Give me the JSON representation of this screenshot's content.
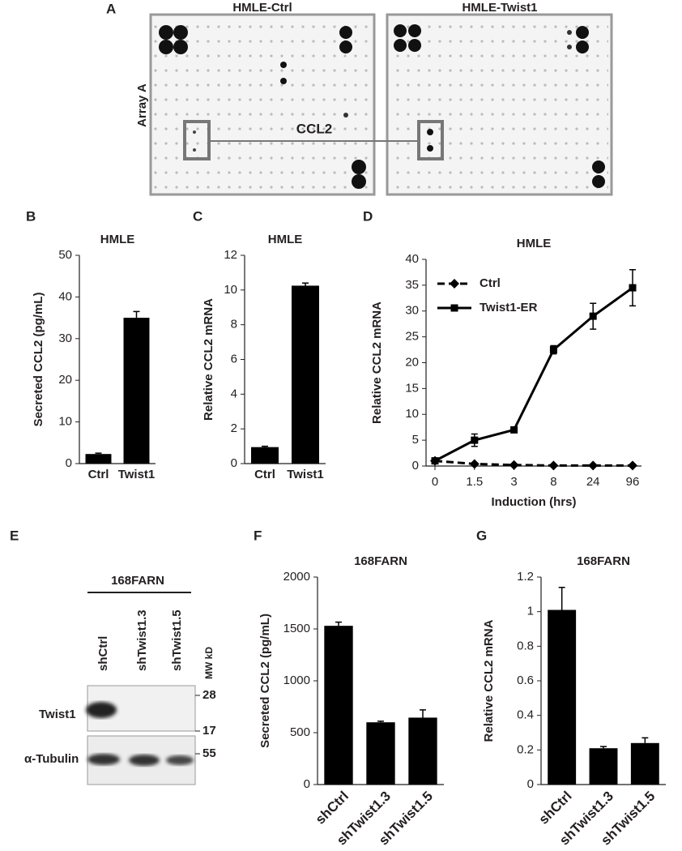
{
  "array_panel": {
    "label": "A",
    "titles": [
      "HMLE-Ctrl",
      "HMLE-Twist1"
    ],
    "row_label": "Array A",
    "highlight": "CCL2"
  },
  "blot_panel": {
    "label": "E",
    "cell_line": "168FARN",
    "lanes": [
      "shCtrl",
      "shTwist1.3",
      "shTwist1.5"
    ],
    "mw_label": "MW kD",
    "rows": [
      "Twist1",
      "α-Tubulin"
    ],
    "markers": [
      "28",
      "17",
      "55"
    ]
  },
  "chart_data": [
    {
      "type": "bar",
      "panel_label": "B",
      "title": "HMLE",
      "y_label": "Secreted CCL2 (pg/mL)",
      "categories": [
        "Ctrl",
        "Twist1"
      ],
      "values": [
        2.3,
        35
      ],
      "errors": [
        0.2,
        1.5
      ],
      "color": "#000000",
      "ylim": [
        0,
        50
      ],
      "yticks": [
        0,
        10,
        20,
        30,
        40,
        50
      ]
    },
    {
      "type": "bar",
      "panel_label": "C",
      "title": "HMLE",
      "y_label": "Relative CCL2 mRNA",
      "categories": [
        "Ctrl",
        "Twist1"
      ],
      "values": [
        0.95,
        10.25
      ],
      "errors": [
        0.05,
        0.15
      ],
      "color": "#000000",
      "ylim": [
        0,
        12
      ],
      "yticks": [
        0,
        2,
        4,
        6,
        8,
        10,
        12
      ]
    },
    {
      "type": "line",
      "panel_label": "D",
      "title": "HMLE",
      "x_label": "Induction (hrs)",
      "y_label": "Relative CCL2 mRNA",
      "categories": [
        "0",
        "1.5",
        "3",
        "8",
        "24",
        "96"
      ],
      "ylim": [
        0,
        40
      ],
      "yticks": [
        0,
        5,
        10,
        15,
        20,
        25,
        30,
        35,
        40
      ],
      "legend": "upper left",
      "series": [
        {
          "name": "Ctrl",
          "color": "#000000",
          "dashed": true,
          "marker": "diamond",
          "values": [
            1,
            0.4,
            0.2,
            0.1,
            0.1,
            0.1
          ],
          "errors": [
            0.1,
            0.05,
            0.05,
            0.05,
            0.05,
            0.05
          ]
        },
        {
          "name": "Twist1-ER",
          "color": "#000000",
          "dashed": false,
          "marker": "square",
          "values": [
            1,
            5,
            7,
            22.5,
            29,
            34.5
          ],
          "errors": [
            0.3,
            1.2,
            0.4,
            0.8,
            2.5,
            3.5
          ]
        }
      ]
    },
    {
      "type": "bar",
      "panel_label": "F",
      "title": "168FARN",
      "y_label": "Secreted CCL2 (pg/mL)",
      "categories": [
        "shCtrl",
        "shTwist1.3",
        "shTwist1.5"
      ],
      "values": [
        1530,
        600,
        645
      ],
      "errors": [
        35,
        10,
        75
      ],
      "color": "#000000",
      "ylim": [
        0,
        2000
      ],
      "yticks": [
        0,
        500,
        1000,
        1500,
        2000
      ]
    },
    {
      "type": "bar",
      "panel_label": "G",
      "title": "168FARN",
      "y_label": "Relative CCL2 mRNA",
      "categories": [
        "shCtrl",
        "shTwist1.3",
        "shTwist1.5"
      ],
      "values": [
        1.01,
        0.21,
        0.24
      ],
      "errors": [
        0.13,
        0.01,
        0.03
      ],
      "color": "#000000",
      "ylim": [
        0,
        1.2
      ],
      "yticks": [
        0,
        0.2,
        0.4,
        0.6,
        0.8,
        1,
        1.2
      ]
    }
  ]
}
